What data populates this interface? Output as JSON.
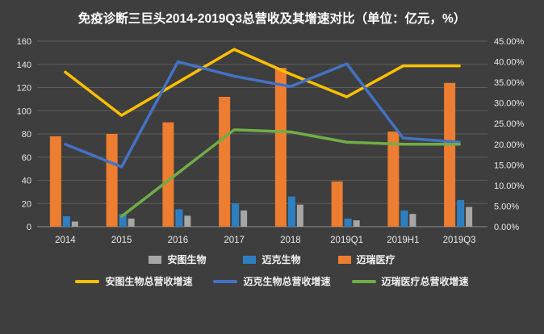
{
  "title": "免疫诊断三巨头2014-2019Q3总营收及其增速对比（单位：亿元，%）",
  "colors": {
    "background": "#3e3e3e",
    "gridline": "#5d5d5d",
    "axis_text": "#e8e8e8",
    "bar_gray": "#a6a6a6",
    "bar_blue": "#2e7fc2",
    "bar_orange": "#ed7d31",
    "line_yellow": "#ffc000",
    "line_blue": "#4472c4",
    "line_green": "#70ad47"
  },
  "legend": {
    "items": [
      {
        "label": "安图生物",
        "type": "bar",
        "color": "#a6a6a6"
      },
      {
        "label": "迈克生物",
        "type": "bar",
        "color": "#2e7fc2"
      },
      {
        "label": "迈瑞医疗",
        "type": "bar",
        "color": "#ed7d31"
      },
      {
        "label": "安图生物总营收增速",
        "type": "line",
        "color": "#ffc000"
      },
      {
        "label": "迈克生物总营收增速",
        "type": "line",
        "color": "#4472c4"
      },
      {
        "label": "迈瑞医疗总营收增速",
        "type": "line",
        "color": "#70ad47"
      }
    ]
  },
  "chart_data": {
    "type": "bar+line combo",
    "title": "免疫诊断三巨头2014-2019Q3总营收及其增速对比（单位：亿元，%）",
    "categories": [
      "2014",
      "2015",
      "2016",
      "2017",
      "2018",
      "2019Q1",
      "2019H1",
      "2019Q3"
    ],
    "bar_series": [
      {
        "name": "迈瑞医疗",
        "axis": "left",
        "color": "#ed7d31",
        "values": [
          78,
          80,
          90,
          112,
          137,
          39,
          82,
          124
        ]
      },
      {
        "name": "迈克生物",
        "axis": "left",
        "color": "#2e7fc2",
        "values": [
          9,
          11,
          15,
          20,
          26,
          7,
          14,
          23
        ]
      },
      {
        "name": "安图生物",
        "axis": "left",
        "color": "#a6a6a6",
        "values": [
          4.5,
          7,
          9.5,
          14,
          19,
          5.5,
          11,
          17
        ]
      }
    ],
    "line_series": [
      {
        "name": "安图生物总营收增速",
        "axis": "right",
        "color": "#ffc000",
        "values": [
          37.5,
          27,
          35,
          43,
          37,
          31.5,
          39,
          39
        ]
      },
      {
        "name": "迈克生物总营收增速",
        "axis": "right",
        "color": "#4472c4",
        "values": [
          20,
          14.5,
          40,
          36.5,
          34,
          39.5,
          21.5,
          20.5
        ]
      },
      {
        "name": "迈瑞医疗总营收增速",
        "axis": "right",
        "color": "#70ad47",
        "values": [
          null,
          2.5,
          13,
          23.5,
          23,
          20.5,
          20,
          20
        ]
      }
    ],
    "left_axis": {
      "min": 0,
      "max": 160,
      "step": 20,
      "tick_labels": [
        "0",
        "20",
        "40",
        "60",
        "80",
        "100",
        "120",
        "140",
        "160"
      ]
    },
    "right_axis": {
      "min": 0,
      "max": 45,
      "labels": [
        "0.00%",
        "5.00%",
        "10.00%",
        "15.00%",
        "20.00%",
        "25.00%",
        "30.00%",
        "35.00%",
        "40.00%",
        "45.00%"
      ]
    },
    "grid": "horizontal",
    "legend_position": "bottom"
  }
}
